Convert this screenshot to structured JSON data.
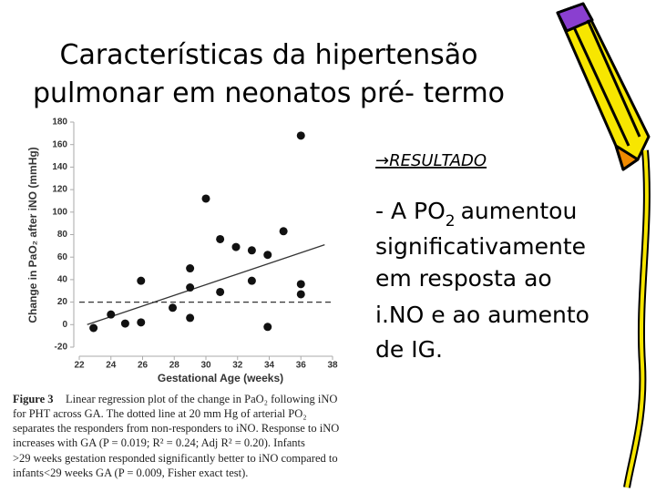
{
  "title": {
    "lines": [
      "Características da hipertensão",
      "pulmonar em neonatos pré- termo"
    ]
  },
  "section": "→RESULTADO",
  "bullet": {
    "lead": "- A PO",
    "sub": "2",
    "lines": [
      "aumentou",
      "significativamente",
      "em resposta ao",
      "i.NO e ao aumento",
      "de IG."
    ]
  },
  "caption": {
    "label": "Figure 3",
    "lines": [
      "Linear regression plot of the change in PaO₂ following iNO",
      "for PHT across GA. The dotted line at 20 mm Hg of arterial PO₂",
      "separates the responders from non-responders to iNO. Response to iNO",
      "increases with GA (P = 0.019; R² = 0.24; Adj R² = 0.20). Infants",
      ">29 weeks gestation responded significantly better to iNO compared to",
      "infants<29 weeks GA (P = 0.009, Fisher exact test)."
    ]
  },
  "chart_data": {
    "type": "scatter",
    "x_label": "Gestational Age (weeks)",
    "y_label": "Change in PaO₂ after iNO (mmHg)",
    "x": [
      22.9,
      24.0,
      24.9,
      25.9,
      25.9,
      27.9,
      29.0,
      29.0,
      29.0,
      30.0,
      30.9,
      30.9,
      31.9,
      32.9,
      32.9,
      33.9,
      33.9,
      34.9,
      36.0,
      36.0,
      36.0
    ],
    "y": [
      -3,
      9,
      1,
      2,
      39,
      15,
      50,
      33,
      6,
      112,
      76,
      29,
      69,
      66,
      39,
      62,
      -2,
      83,
      168,
      36,
      27
    ],
    "color": "#111111",
    "fit_line": {
      "x": [
        22.5,
        37.5
      ],
      "y": [
        0,
        71
      ]
    },
    "threshold": 20,
    "xlim": [
      22,
      38
    ],
    "ylim": [
      -20,
      180
    ],
    "xticks": [
      22,
      24,
      26,
      28,
      30,
      32,
      34,
      36,
      38
    ],
    "yticks": [
      -20,
      0,
      20,
      40,
      60,
      80,
      100,
      120,
      140,
      160,
      180
    ]
  }
}
